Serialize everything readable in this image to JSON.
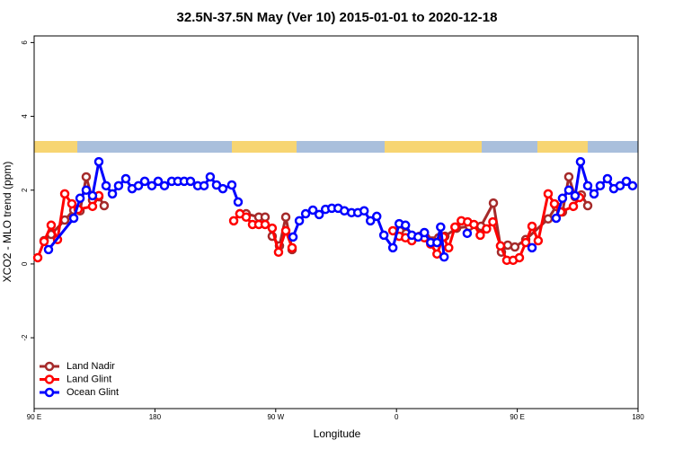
{
  "chart_data": {
    "type": "line",
    "title": "32.5N-37.5N May (Ver 10)   2015-01-01 to 2020-12-18",
    "x_label": "Longitude",
    "y_label": "XCO2 - MLO trend (ppm)",
    "xlim": [
      90,
      540
    ],
    "xticks": [
      {
        "value": 90,
        "label": "90 E"
      },
      {
        "value": 180,
        "label": "180"
      },
      {
        "value": 270,
        "label": "90 W"
      },
      {
        "value": 360,
        "label": "0"
      },
      {
        "value": 450,
        "label": "90 E"
      },
      {
        "value": 540,
        "label": "180"
      }
    ],
    "ylim": [
      -3.92,
      6.18
    ],
    "yticks": [
      -2,
      0,
      2,
      4,
      6
    ],
    "grid": false,
    "legend": "bottom-left",
    "series": [
      {
        "name": "Land Nadir",
        "color": "#a52a2a",
        "x": [
          97.4,
          102.7,
          112.8,
          119.5,
          124.2,
          128.8,
          133.5,
          138.2,
          142.2,
          null,
          243.3,
          248,
          257.4,
          262.1,
          267.4,
          272.8,
          277.5,
          282.2,
          null,
          362.5,
          367.2,
          372.6,
          377.2,
          381.9,
          391.4,
          396.1,
          404.8,
          414.2,
          422.9,
          432.2,
          438.2,
          442.9,
          448.2,
          456.3,
          473,
          479,
          483.7,
          488.4,
          493.1,
          497.8,
          502.5
        ],
        "values": [
          0.63,
          0.8,
          1.19,
          1.46,
          1.44,
          2.36,
          1.73,
          1.82,
          1.58,
          null,
          1.36,
          1.36,
          1.27,
          1.27,
          0.75,
          0.49,
          1.27,
          0.39,
          null,
          0.9,
          0.83,
          0.73,
          0.75,
          0.71,
          0.71,
          0.75,
          0.97,
          1.02,
          1.02,
          1.65,
          0.32,
          0.51,
          0.46,
          0.66,
          1.22,
          1.56,
          1.41,
          2.36,
          1.82,
          1.87,
          1.58
        ]
      },
      {
        "name": "Land Glint",
        "color": "#ff0000",
        "x": [
          92.7,
          97.4,
          102.7,
          107.4,
          112.8,
          118.1,
          122.8,
          133.5,
          138.2,
          null,
          238.7,
          243.3,
          248,
          252.7,
          257.4,
          262.1,
          267.4,
          272.1,
          277.5,
          282.2,
          null,
          357.3,
          362,
          366.7,
          371.4,
          380.8,
          385.5,
          390.2,
          394.9,
          398.9,
          403.6,
          408.3,
          413,
          417.7,
          422.4,
          427.1,
          431.8,
          437.5,
          442.2,
          446.9,
          451.6,
          456.3,
          461,
          465.6,
          473,
          477.7,
          482.4,
          491.8,
          496.4
        ],
        "values": [
          0.17,
          0.61,
          1.05,
          0.66,
          1.9,
          1.63,
          1.48,
          1.56,
          1.85,
          null,
          1.17,
          1.36,
          1.27,
          1.07,
          1.07,
          1.07,
          0.97,
          0.32,
          0.9,
          0.44,
          null,
          0.9,
          0.75,
          0.71,
          0.63,
          0.71,
          0.54,
          0.27,
          0.73,
          0.44,
          1.0,
          1.17,
          1.14,
          1.07,
          0.78,
          0.95,
          1.14,
          0.49,
          0.1,
          0.1,
          0.17,
          0.58,
          1.02,
          0.63,
          1.9,
          1.63,
          1.41,
          1.56,
          1.8
        ]
      },
      {
        "name": "Ocean Glint",
        "color": "#0000ff",
        "x": [
          100.7,
          119.5,
          124.2,
          128.8,
          133.5,
          138.2,
          143.6,
          148.3,
          152.9,
          158.3,
          163,
          167.7,
          172.4,
          177.7,
          182.4,
          187.1,
          192.5,
          197.1,
          201.8,
          206.5,
          211.9,
          216.6,
          221.2,
          225.9,
          230.6,
          237.3,
          242,
          null,
          282.9,
          287.6,
          292.3,
          297.7,
          302.4,
          307.1,
          311.8,
          316.5,
          321.2,
          326.5,
          331.2,
          335.9,
          340.6,
          345.3,
          350.6,
          357.3,
          362,
          366.7,
          371.4,
          376.1,
          380.8,
          385.5,
          390.2,
          392.9,
          395.5,
          null,
          412.7,
          null,
          461,
          null,
          479,
          483.7,
          488.4,
          493.1,
          497.1,
          502.5,
          507.2,
          511.8,
          517.2,
          521.9,
          526.6,
          531.3,
          535.9
        ],
        "values": [
          0.39,
          1.24,
          1.78,
          2.0,
          1.85,
          2.77,
          2.12,
          1.9,
          2.12,
          2.31,
          2.04,
          2.12,
          2.24,
          2.12,
          2.24,
          2.12,
          2.24,
          2.24,
          2.24,
          2.24,
          2.12,
          2.12,
          2.36,
          2.14,
          2.04,
          2.14,
          1.68,
          null,
          0.73,
          1.17,
          1.36,
          1.46,
          1.34,
          1.48,
          1.51,
          1.51,
          1.44,
          1.39,
          1.39,
          1.44,
          1.17,
          1.29,
          0.78,
          0.44,
          1.09,
          1.05,
          0.78,
          0.73,
          0.85,
          0.58,
          0.58,
          1.0,
          0.19,
          null,
          0.83,
          null,
          0.44,
          null,
          1.24,
          1.78,
          2.0,
          1.85,
          2.77,
          2.12,
          1.9,
          2.12,
          2.31,
          2.04,
          2.12,
          2.24,
          2.12
        ]
      }
    ]
  }
}
